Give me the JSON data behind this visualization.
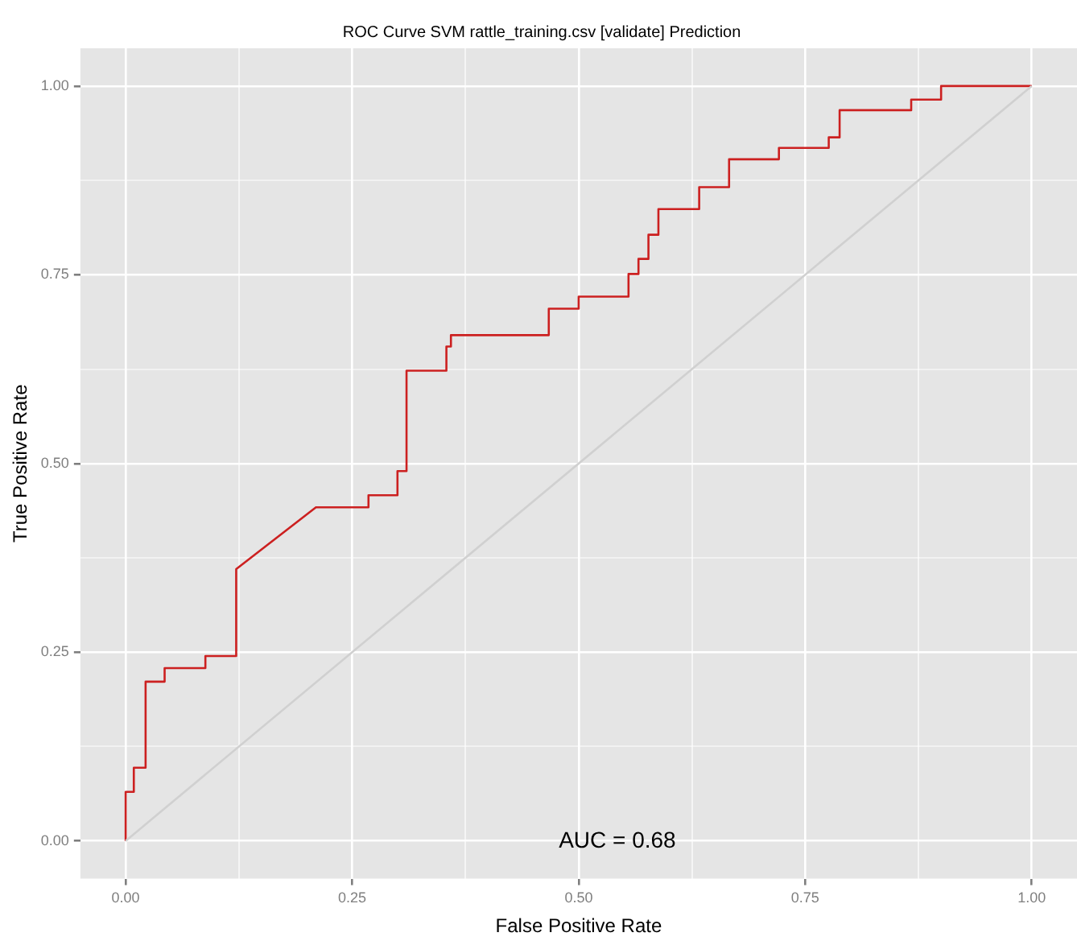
{
  "chart_data": {
    "type": "line",
    "title": "ROC Curve SVM rattle_training.csv [validate] Prediction",
    "xlabel": "False Positive Rate",
    "ylabel": "True Positive Rate",
    "annotations": [
      "AUC = 0.68"
    ],
    "xlim": [
      -0.05,
      1.05
    ],
    "ylim": [
      -0.05,
      1.05
    ],
    "xticks": [
      {
        "value": 0,
        "label": "0.00"
      },
      {
        "value": 0.125,
        "label": null
      },
      {
        "value": 0.25,
        "label": "0.25"
      },
      {
        "value": 0.375,
        "label": null
      },
      {
        "value": 0.5,
        "label": "0.50"
      },
      {
        "value": 0.625,
        "label": null
      },
      {
        "value": 0.75,
        "label": "0.75"
      },
      {
        "value": 0.875,
        "label": null
      },
      {
        "value": 1,
        "label": "1.00"
      }
    ],
    "yticks": [
      {
        "value": 0,
        "label": "0.00"
      },
      {
        "value": 0.125,
        "label": null
      },
      {
        "value": 0.25,
        "label": "0.25"
      },
      {
        "value": 0.375,
        "label": null
      },
      {
        "value": 0.5,
        "label": "0.50"
      },
      {
        "value": 0.625,
        "label": null
      },
      {
        "value": 0.75,
        "label": "0.75"
      },
      {
        "value": 0.875,
        "label": null
      },
      {
        "value": 1,
        "label": "1.00"
      }
    ],
    "grid": true,
    "legend": false,
    "marker": "none",
    "line_style": "solid",
    "series": [
      {
        "color": "#d0d0d0",
        "x": [
          0,
          1
        ],
        "values": [
          0,
          1
        ]
      },
      {
        "color": "#cc2020",
        "x": [
          0,
          0,
          0.009,
          0.009,
          0.022,
          0.022,
          0.043,
          0.043,
          0.088,
          0.088,
          0.122,
          0.122,
          0.21,
          0.268,
          0.268,
          0.3,
          0.3,
          0.31,
          0.31,
          0.354,
          0.354,
          0.359,
          0.359,
          0.467,
          0.467,
          0.5,
          0.5,
          0.555,
          0.555,
          0.566,
          0.566,
          0.577,
          0.577,
          0.588,
          0.588,
          0.633,
          0.633,
          0.666,
          0.666,
          0.721,
          0.721,
          0.776,
          0.776,
          0.788,
          0.788,
          0.867,
          0.867,
          0.9,
          0.9,
          1
        ],
        "values": [
          0,
          0.065,
          0.065,
          0.097,
          0.097,
          0.211,
          0.211,
          0.229,
          0.229,
          0.245,
          0.245,
          0.36,
          0.442,
          0.442,
          0.458,
          0.458,
          0.49,
          0.49,
          0.623,
          0.623,
          0.655,
          0.655,
          0.67,
          0.67,
          0.705,
          0.705,
          0.721,
          0.721,
          0.751,
          0.751,
          0.771,
          0.771,
          0.803,
          0.803,
          0.837,
          0.837,
          0.866,
          0.866,
          0.903,
          0.903,
          0.918,
          0.918,
          0.932,
          0.932,
          0.968,
          0.968,
          0.982,
          0.982,
          1,
          1
        ]
      }
    ]
  }
}
